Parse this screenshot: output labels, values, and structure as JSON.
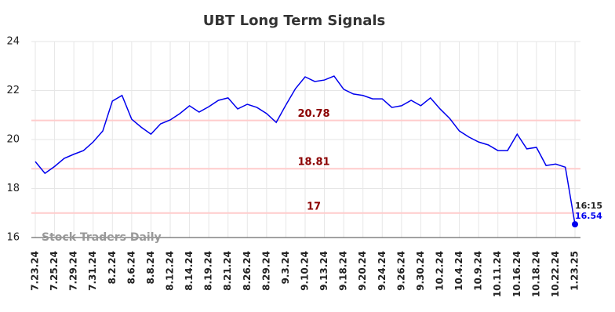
{
  "chart_data": {
    "type": "line",
    "title": "UBT Long Term Signals",
    "categories": [
      "7.23.24",
      null,
      "7.25.24",
      null,
      "7.29.24",
      null,
      "7.31.24",
      null,
      "8.2.24",
      null,
      "8.6.24",
      null,
      "8.8.24",
      null,
      "8.12.24",
      null,
      "8.14.24",
      null,
      "8.19.24",
      null,
      "8.21.24",
      null,
      "8.26.24",
      null,
      "8.29.24",
      null,
      "9.3.24",
      null,
      "9.10.24",
      null,
      "9.13.24",
      null,
      "9.18.24",
      null,
      "9.20.24",
      null,
      "9.24.24",
      null,
      "9.26.24",
      null,
      "9.30.24",
      null,
      "10.2.24",
      null,
      "10.4.24",
      null,
      "10.9.24",
      null,
      "10.11.24",
      null,
      "10.16.24",
      null,
      "10.18.24",
      null,
      "10.22.24",
      null,
      "1.23.25"
    ],
    "series": [
      {
        "name": "UBT",
        "color": "#0000ee",
        "values": [
          19.1,
          18.62,
          18.9,
          19.23,
          19.4,
          19.55,
          19.9,
          20.35,
          21.57,
          21.8,
          20.83,
          20.5,
          20.22,
          20.64,
          20.8,
          21.06,
          21.38,
          21.12,
          21.34,
          21.6,
          21.7,
          21.25,
          21.44,
          21.31,
          21.06,
          20.7,
          21.41,
          22.08,
          22.56,
          22.37,
          22.43,
          22.59,
          22.05,
          21.86,
          21.8,
          21.66,
          21.66,
          21.31,
          21.38,
          21.6,
          21.38,
          21.7,
          21.25,
          20.86,
          20.35,
          20.1,
          19.9,
          19.78,
          19.55,
          19.55,
          20.22,
          19.62,
          19.68,
          18.94,
          19.0,
          18.87,
          16.54
        ]
      }
    ],
    "hlines": [
      {
        "value": 20.78,
        "color": "#ffcccc",
        "label_color": "#8b0000"
      },
      {
        "value": 18.81,
        "color": "#ffcccc",
        "label_color": "#8b0000"
      },
      {
        "value": 17,
        "color": "#ffcccc",
        "label_color": "#8b0000"
      }
    ],
    "last_time": "16:15",
    "watermark": "Stock Traders Daily",
    "ylim": [
      16,
      24
    ],
    "yticks": [
      16,
      18,
      20,
      22,
      24
    ],
    "grid": true
  }
}
